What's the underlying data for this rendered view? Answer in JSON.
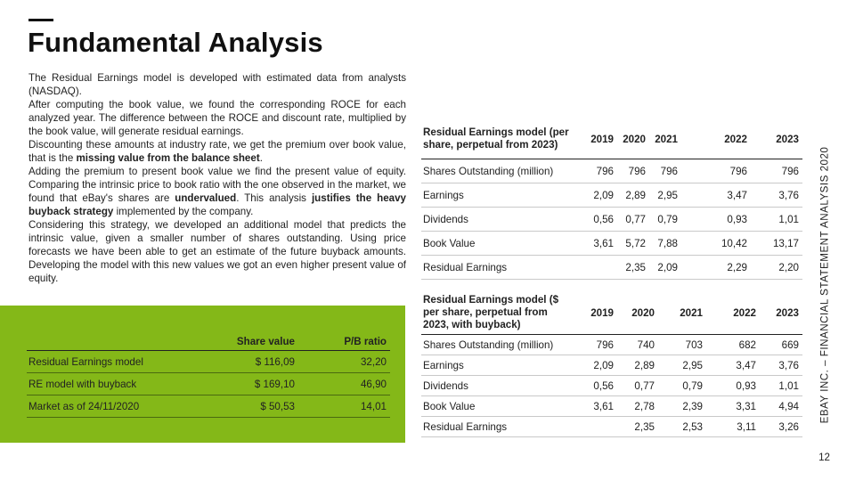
{
  "title": "Fundamental Analysis",
  "body": {
    "p1": "The Residual Earnings model is developed with estimated data from analysts (NASDAQ).",
    "p2": "After computing the book value, we found the corresponding ROCE for each analyzed year. The difference between the ROCE and discount rate, multiplied by the book value, will generate residual earnings.",
    "p3_a": "Discounting these amounts at industry rate, we get the premium over book value, that is the ",
    "p3_b": "missing value from the balance sheet",
    "p3_c": ".",
    "p4_a": "Adding the premium to present book value we find the present value of equity. Comparing the intrinsic price to book ratio with the one observed in the market, we found that eBay's shares are ",
    "p4_b": "undervalued",
    "p4_c": ". This analysis ",
    "p4_d": "justifies the heavy buyback strategy",
    "p4_e": " implemented by the company.",
    "p5": "Considering this strategy, we developed an additional model that predicts the intrinsic value, given a smaller number of shares outstanding. Using price forecasts we have been able to get an estimate of the future buyback amounts. Developing the model with this new values we got an even higher present value of equity."
  },
  "summary_table": {
    "headers": [
      "",
      "Share value",
      "P/B ratio"
    ],
    "rows": [
      [
        "Residual Earnings model",
        "$ 116,09",
        "32,20"
      ],
      [
        "RE model with buyback",
        "$ 169,10",
        "46,90"
      ],
      [
        "Market as of 24/11/2020",
        "$ 50,53",
        "14,01"
      ]
    ]
  },
  "re_table": {
    "header_label": "Residual Earnings model (per share, perpetual from 2023)",
    "years": [
      "2019",
      "2020",
      "2021",
      "2022",
      "2023"
    ],
    "rows": [
      [
        "Shares Outstanding (million)",
        "796",
        "796",
        "796",
        "796",
        "796"
      ],
      [
        "Earnings",
        "2,09",
        "2,89",
        "2,95",
        "3,47",
        "3,76"
      ],
      [
        "Dividends",
        "0,56",
        "0,77",
        "0,79",
        "0,93",
        "1,01"
      ],
      [
        "Book Value",
        "3,61",
        "5,72",
        "7,88",
        "10,42",
        "13,17"
      ],
      [
        "Residual Earnings",
        "",
        "2,35",
        "2,09",
        "2,29",
        "2,20"
      ]
    ]
  },
  "re_buyback_table": {
    "header_label": "Residual Earnings model ($ per share, perpetual from 2023, with buyback)",
    "years": [
      "2019",
      "2020",
      "2021",
      "2022",
      "2023"
    ],
    "rows": [
      [
        "Shares Outstanding (million)",
        "796",
        "740",
        "703",
        "682",
        "669"
      ],
      [
        "Earnings",
        "2,09",
        "2,89",
        "2,95",
        "3,47",
        "3,76"
      ],
      [
        "Dividends",
        "0,56",
        "0,77",
        "0,79",
        "0,93",
        "1,01"
      ],
      [
        "Book Value",
        "3,61",
        "2,78",
        "2,39",
        "3,31",
        "4,94"
      ],
      [
        "Residual Earnings",
        "",
        "2,35",
        "2,53",
        "3,11",
        "3,26"
      ]
    ]
  },
  "side_label": "EBAY INC. – FINANCIAL STATEMENT ANALYSIS 2020",
  "page_number": "12",
  "colors": {
    "accent_green": "#84b818",
    "text": "#222222"
  }
}
